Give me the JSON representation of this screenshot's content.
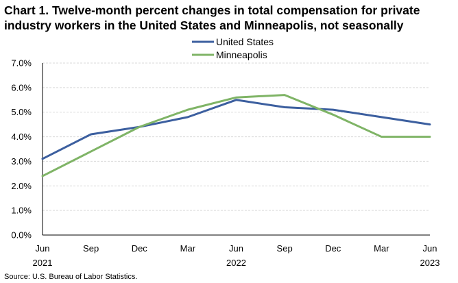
{
  "chart_data": {
    "type": "line",
    "title": "Chart 1. Twelve-month percent changes in total compensation for private industry workers in the United States and Minneapolis, not seasonally",
    "xlabel": "",
    "ylabel": "",
    "categories": [
      "Jun",
      "Sep",
      "Dec",
      "Mar",
      "Jun",
      "Sep",
      "Dec",
      "Mar",
      "Jun"
    ],
    "year_labels": [
      "2021",
      "",
      "",
      "",
      "2022",
      "",
      "",
      "",
      "2023"
    ],
    "ylim": [
      0,
      7
    ],
    "yticks": [
      "0.0%",
      "1.0%",
      "2.0%",
      "3.0%",
      "4.0%",
      "5.0%",
      "6.0%",
      "7.0%"
    ],
    "yticks_values": [
      0,
      1,
      2,
      3,
      4,
      5,
      6,
      7
    ],
    "grid": true,
    "legend_position": "top-center",
    "series": [
      {
        "name": "United States",
        "color": "#3c5f9f",
        "values": [
          3.1,
          4.1,
          4.4,
          4.8,
          5.5,
          5.2,
          5.1,
          4.8,
          4.5
        ]
      },
      {
        "name": "Minneapolis",
        "color": "#7fb466",
        "values": [
          2.4,
          3.4,
          4.4,
          5.1,
          5.6,
          5.7,
          4.9,
          4.0,
          4.0
        ]
      }
    ],
    "source": "Source: U.S. Bureau of Labor Statistics."
  }
}
